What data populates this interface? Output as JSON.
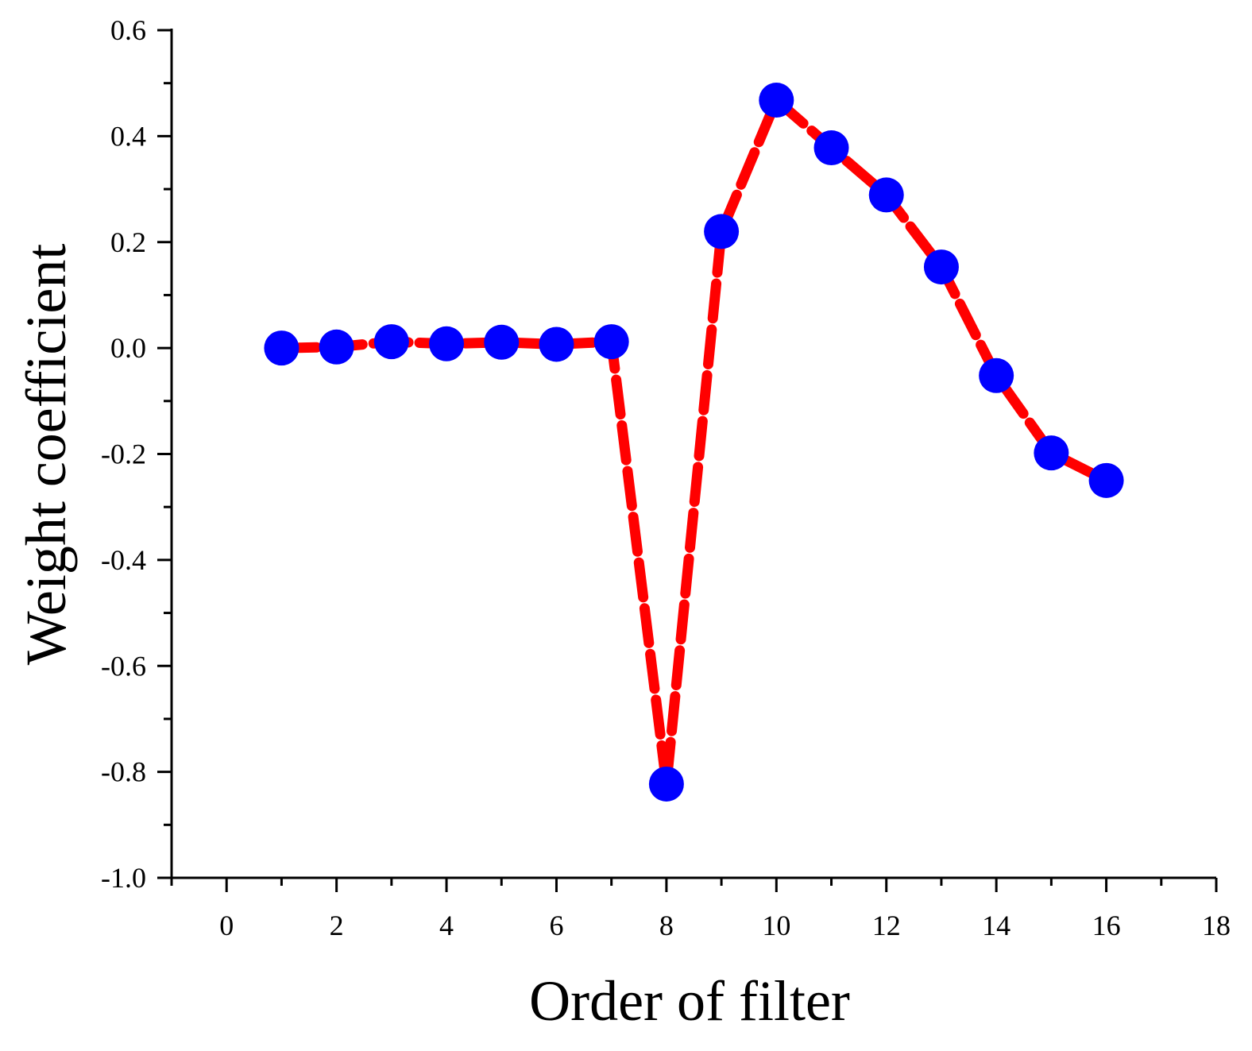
{
  "chart_data": {
    "type": "line",
    "title": "",
    "xlabel": "Order of filter",
    "ylabel": "Weight coefficient",
    "xlim": [
      -1,
      18
    ],
    "ylim": [
      -1.0,
      0.6
    ],
    "x_ticks": [
      0,
      2,
      4,
      6,
      8,
      10,
      12,
      14,
      16,
      18
    ],
    "x_tick_labels": [
      "0",
      "2",
      "4",
      "6",
      "8",
      "10",
      "12",
      "14",
      "16",
      "18"
    ],
    "y_ticks": [
      -1.0,
      -0.8,
      -0.6,
      -0.4,
      -0.2,
      0.0,
      0.2,
      0.4,
      0.6
    ],
    "y_tick_labels": [
      "-1.0",
      "-0.8",
      "-0.6",
      "-0.4",
      "-0.2",
      "0.0",
      "0.2",
      "0.4",
      "0.6"
    ],
    "grid": false,
    "legend": "none",
    "line_color": "#ff0000",
    "marker_color": "#0000ff",
    "line_style": "dashed",
    "series": [
      {
        "x": [
          1,
          2,
          3,
          4,
          5,
          6,
          7,
          8,
          9,
          10,
          11,
          12,
          13,
          14,
          15,
          16
        ],
        "y": [
          0.0,
          0.002,
          0.012,
          0.008,
          0.011,
          0.007,
          0.012,
          -0.823,
          0.22,
          0.468,
          0.378,
          0.289,
          0.153,
          -0.052,
          -0.198,
          -0.25
        ]
      }
    ]
  }
}
